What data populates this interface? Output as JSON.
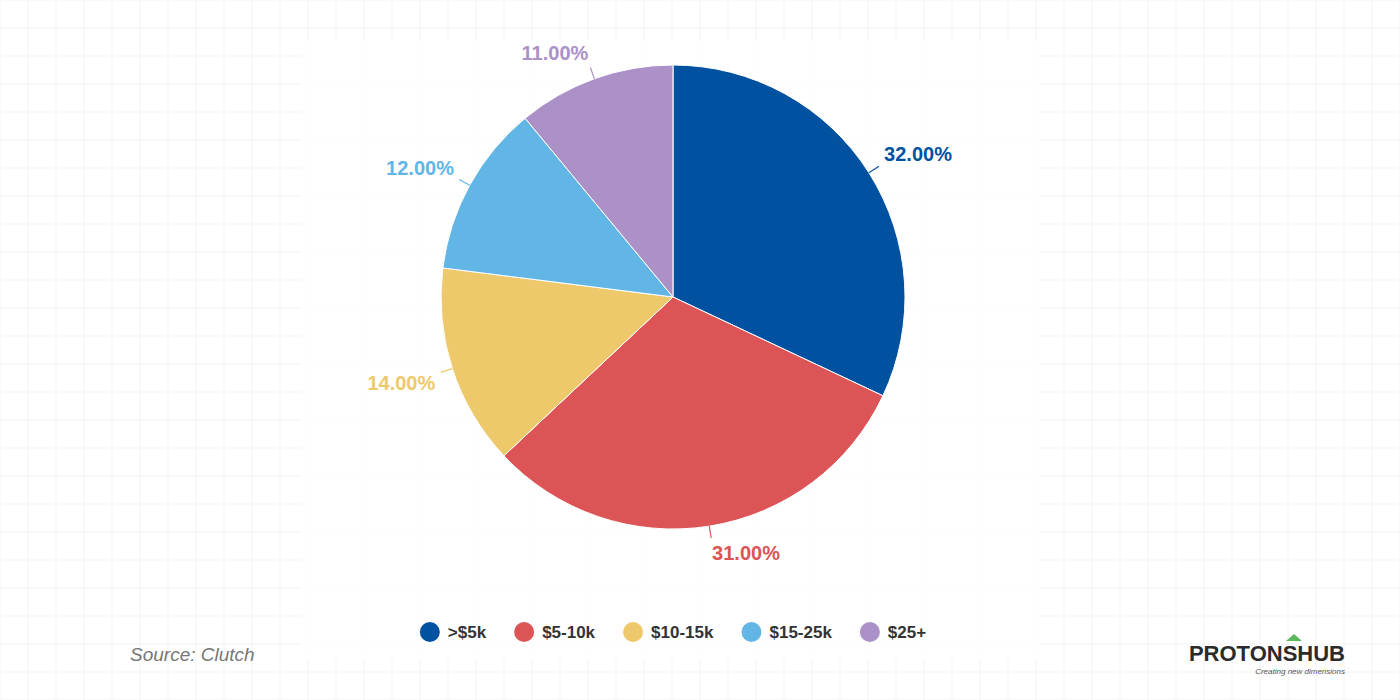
{
  "chart_data": {
    "type": "pie",
    "categories": [
      ">$5k",
      "$5-10k",
      "$10-15k",
      "$15-25k",
      "$25+"
    ],
    "values": [
      32,
      31,
      14,
      12,
      11
    ],
    "value_labels": [
      "32.00%",
      "31.00%",
      "14.00%",
      "12.00%",
      "11.00%"
    ],
    "colors": [
      "#0052a0",
      "#dc5456",
      "#eec96b",
      "#62b6e6",
      "#ab91c7"
    ],
    "data_labels": true,
    "legend": "bottom",
    "annotations": [
      "Source: Clutch",
      "PROTONSHUB",
      "Creating new dimensions"
    ]
  }
}
